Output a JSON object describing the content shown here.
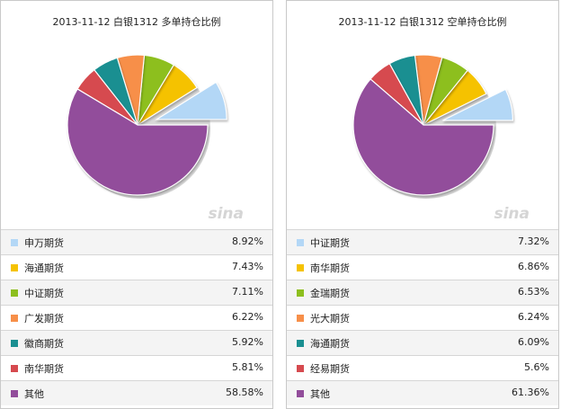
{
  "chart_data": [
    {
      "type": "pie",
      "title": "2013-11-12  白银1312  多单持仓比例",
      "exploded": "申万期货",
      "slices": [
        {
          "name": "申万期货",
          "value": 8.92,
          "label": "8.92%",
          "color": "#b3d7f6"
        },
        {
          "name": "海通期货",
          "value": 7.43,
          "label": "7.43%",
          "color": "#f5c200"
        },
        {
          "name": "中证期货",
          "value": 7.11,
          "label": "7.11%",
          "color": "#8dbf1e"
        },
        {
          "name": "广发期货",
          "value": 6.22,
          "label": "6.22%",
          "color": "#f78f49"
        },
        {
          "name": "徽商期货",
          "value": 5.92,
          "label": "5.92%",
          "color": "#1a8f91"
        },
        {
          "name": "南华期货",
          "value": 5.81,
          "label": "5.81%",
          "color": "#d64a4f"
        },
        {
          "name": "其他",
          "value": 58.58,
          "label": "58.58%",
          "color": "#924d9b"
        }
      ]
    },
    {
      "type": "pie",
      "title": "2013-11-12  白银1312  空单持仓比例",
      "exploded": "中证期货",
      "slices": [
        {
          "name": "中证期货",
          "value": 7.32,
          "label": "7.32%",
          "color": "#b3d7f6"
        },
        {
          "name": "南华期货",
          "value": 6.86,
          "label": "6.86%",
          "color": "#f5c200"
        },
        {
          "name": "金瑞期货",
          "value": 6.53,
          "label": "6.53%",
          "color": "#8dbf1e"
        },
        {
          "name": "光大期货",
          "value": 6.24,
          "label": "6.24%",
          "color": "#f78f49"
        },
        {
          "name": "海通期货",
          "value": 6.09,
          "label": "6.09%",
          "color": "#1a8f91"
        },
        {
          "name": "经易期货",
          "value": 5.6,
          "label": "5.6%",
          "color": "#d64a4f"
        },
        {
          "name": "其他",
          "value": 61.36,
          "label": "61.36%",
          "color": "#924d9b"
        }
      ]
    }
  ],
  "watermark": "sina"
}
